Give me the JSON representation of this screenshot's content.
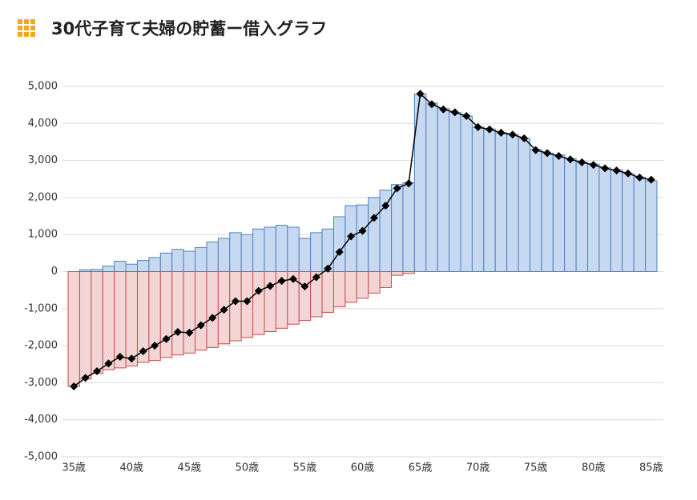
{
  "chart_data": {
    "type": "bar-line",
    "title": "30代子育て夫婦の貯蓄ー借入グラフ",
    "categories": [
      "35歳",
      null,
      null,
      null,
      null,
      "40歳",
      null,
      null,
      null,
      null,
      "45歳",
      null,
      null,
      null,
      null,
      "50歳",
      null,
      null,
      null,
      null,
      "55歳",
      null,
      null,
      null,
      null,
      "60歳",
      null,
      null,
      null,
      null,
      "65歳",
      null,
      null,
      null,
      null,
      "70歳",
      null,
      null,
      null,
      null,
      "75歳",
      null,
      null,
      null,
      null,
      "80歳",
      null,
      null,
      null,
      null,
      "85歳"
    ],
    "series": [
      {
        "color": "#c6d9f1",
        "values": [
          0,
          50,
          60,
          150,
          280,
          200,
          300,
          380,
          500,
          600,
          550,
          650,
          800,
          900,
          1050,
          1000,
          1150,
          1200,
          1250,
          1200,
          900,
          1050,
          1150,
          1480,
          1780,
          1800,
          2000,
          2200,
          2350,
          2400,
          4800,
          4550,
          4400,
          4300,
          4200,
          3900,
          3850,
          3750,
          3700,
          3600,
          3300,
          3200,
          3150,
          3050,
          2950,
          2900,
          2800,
          2750,
          2650,
          2550,
          2450
        ]
      },
      {
        "color": "#f2d5d4",
        "values": [
          -3100,
          -2900,
          -2750,
          -2650,
          -2600,
          -2550,
          -2450,
          -2400,
          -2320,
          -2250,
          -2200,
          -2120,
          -2050,
          -1950,
          -1870,
          -1780,
          -1700,
          -1620,
          -1530,
          -1420,
          -1320,
          -1220,
          -1100,
          -950,
          -830,
          -720,
          -580,
          -430,
          -100,
          -50,
          0,
          0,
          0,
          0,
          0,
          0,
          0,
          0,
          0,
          0,
          0,
          0,
          0,
          0,
          0,
          0,
          0,
          0,
          0,
          0,
          0
        ]
      },
      {
        "color": "#000000",
        "values": [
          -3100,
          -2870,
          -2690,
          -2480,
          -2300,
          -2350,
          -2150,
          -2000,
          -1820,
          -1630,
          -1650,
          -1450,
          -1250,
          -1030,
          -800,
          -800,
          -520,
          -390,
          -250,
          -200,
          -400,
          -150,
          80,
          530,
          950,
          1100,
          1450,
          1780,
          2250,
          2380,
          4800,
          4520,
          4380,
          4300,
          4200,
          3900,
          3840,
          3750,
          3700,
          3600,
          3280,
          3200,
          3120,
          3030,
          2950,
          2880,
          2790,
          2730,
          2650,
          2540,
          2480
        ]
      }
    ],
    "ylim": [
      -5000,
      5000
    ],
    "yticks": [
      {
        "value": -5000,
        "label": "-5,000"
      },
      {
        "value": -4000,
        "label": "-4,000"
      },
      {
        "value": -3000,
        "label": "-3,000"
      },
      {
        "value": -2000,
        "label": "-2,000"
      },
      {
        "value": -1000,
        "label": "-1,000"
      },
      0,
      {
        "value": 1000,
        "label": "1,000"
      },
      {
        "value": 2000,
        "label": "2,000"
      },
      {
        "value": 3000,
        "label": "3,000"
      },
      {
        "value": 4000,
        "label": "4,000"
      },
      {
        "value": 5000,
        "label": "5,000"
      }
    ],
    "grid": true
  }
}
